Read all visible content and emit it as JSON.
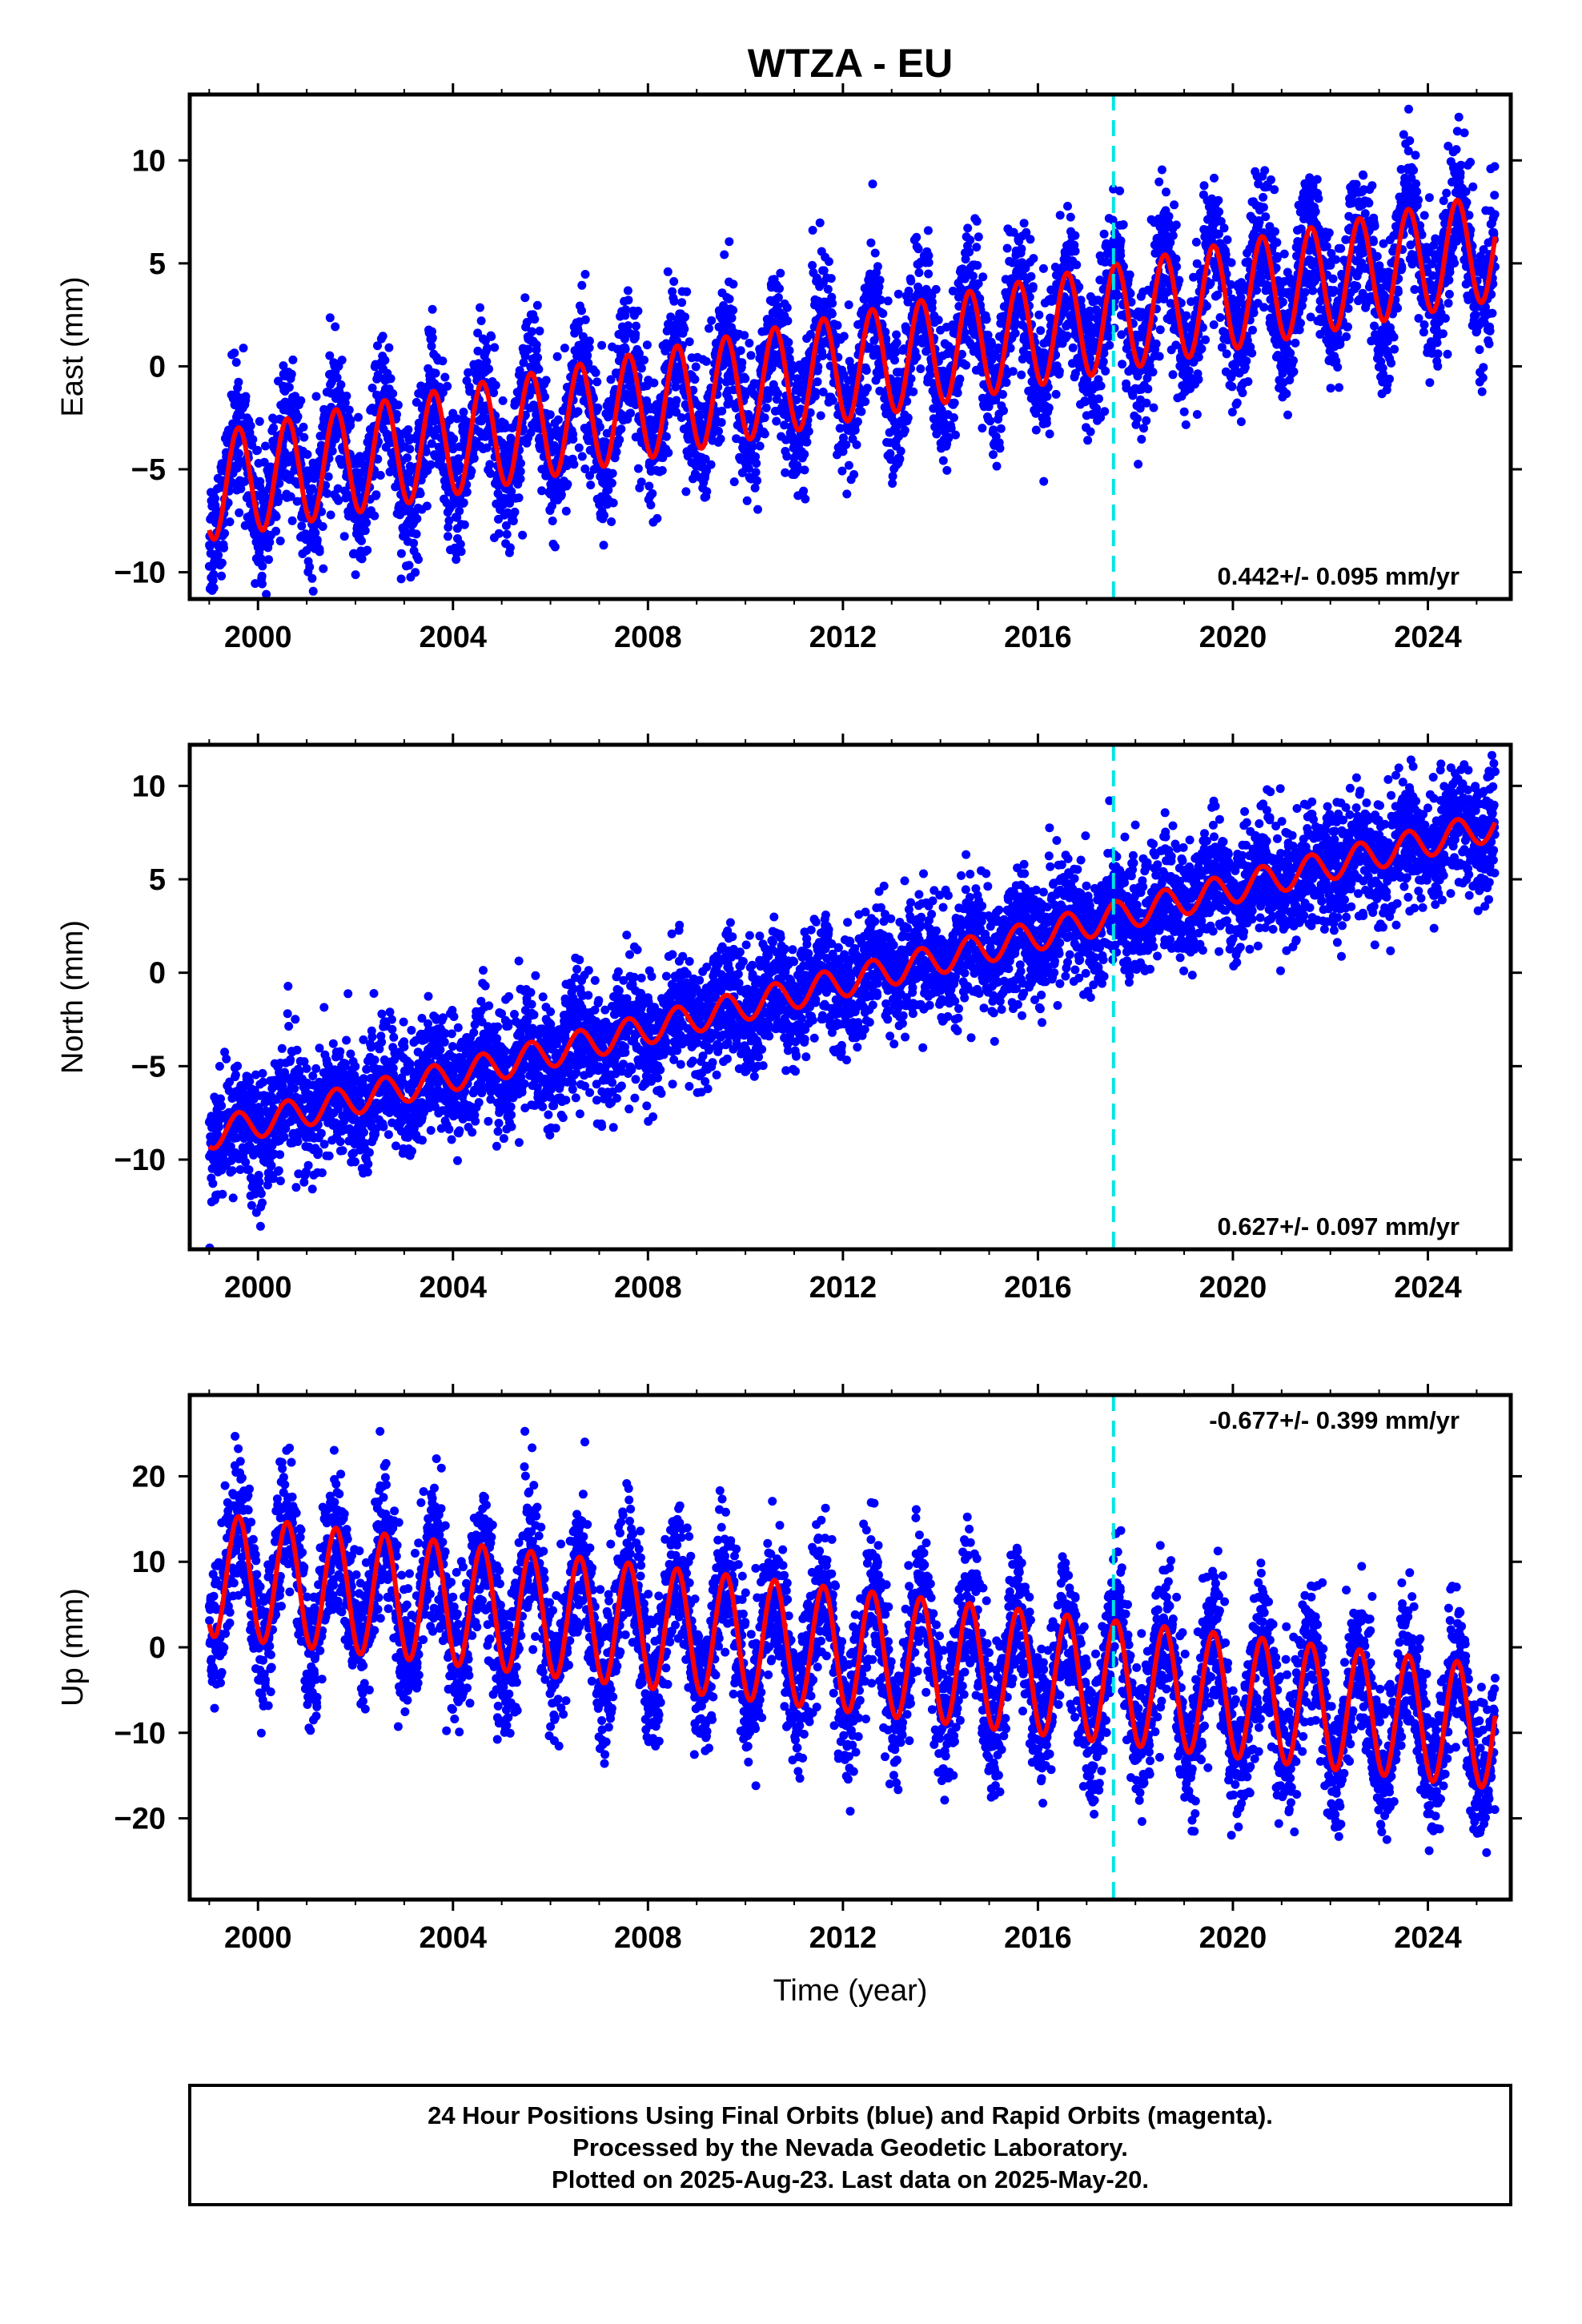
{
  "title": "WTZA - EU",
  "xlabel": "Time (year)",
  "colors": {
    "points": "#0000ff",
    "fit": "#ff0000",
    "marker": "#00e5e5",
    "frame": "#000000"
  },
  "chart_data": [
    {
      "type": "scatter",
      "ylabel": "East (mm)",
      "rate_text": "0.442+/- 0.095 mm/yr",
      "rate_position": "bottom-right",
      "xlim": [
        1998.6,
        2025.7
      ],
      "ylim": [
        -11.3,
        13.2
      ],
      "yticks": [
        -10,
        -5,
        0,
        5,
        10
      ],
      "xticks": [
        2000,
        2004,
        2008,
        2012,
        2016,
        2020,
        2024
      ],
      "marker_line_x": 2017.55,
      "data_start": 1999.0,
      "data_end": 2025.38,
      "fit": {
        "t0": 2012.0,
        "offset": -0.1,
        "slope": 0.442,
        "seasonal_amplitude": 2.6,
        "seasonal_phase_year": 0.35
      },
      "noise_std": 1.7,
      "series": [
        {
          "name": "Final Orbits",
          "role": "daily positions",
          "color": "#0000ff"
        },
        {
          "name": "Fit",
          "role": "trend + seasonal model",
          "color": "#ff0000"
        }
      ]
    },
    {
      "type": "scatter",
      "ylabel": "North (mm)",
      "rate_text": "0.627+/- 0.097 mm/yr",
      "rate_position": "bottom-right",
      "xlim": [
        1998.6,
        2025.7
      ],
      "ylim": [
        -14.8,
        12.2
      ],
      "yticks": [
        -10,
        -5,
        0,
        5,
        10
      ],
      "xticks": [
        2000,
        2004,
        2008,
        2012,
        2016,
        2020,
        2024
      ],
      "marker_line_x": 2017.55,
      "data_start": 1999.0,
      "data_end": 2025.38,
      "fit": {
        "t0": 2012.0,
        "offset": -0.5,
        "slope": 0.627,
        "seasonal_amplitude": 0.8,
        "seasonal_phase_year": 0.35
      },
      "noise_std": 1.6,
      "series": [
        {
          "name": "Final Orbits",
          "role": "daily positions",
          "color": "#0000ff"
        },
        {
          "name": "Fit",
          "role": "trend + seasonal model",
          "color": "#ff0000"
        }
      ]
    },
    {
      "type": "scatter",
      "ylabel": "Up (mm)",
      "rate_text": "-0.677+/- 0.399 mm/yr",
      "rate_position": "top-right",
      "xlim": [
        1998.6,
        2025.7
      ],
      "ylim": [
        -29.5,
        29.5
      ],
      "yticks": [
        -20,
        -10,
        0,
        10,
        20
      ],
      "xticks": [
        2000,
        2004,
        2008,
        2012,
        2016,
        2020,
        2024
      ],
      "marker_line_x": 2017.55,
      "data_start": 1999.0,
      "data_end": 2025.38,
      "fit": {
        "t0": 2012.0,
        "offset": -0.3,
        "slope": -0.677,
        "seasonal_amplitude": 7.2,
        "seasonal_phase_year": 0.35
      },
      "noise_std": 4.2,
      "series": [
        {
          "name": "Final Orbits",
          "role": "daily positions",
          "color": "#0000ff"
        },
        {
          "name": "Fit",
          "role": "trend + seasonal model",
          "color": "#ff0000"
        }
      ]
    }
  ],
  "footer": {
    "line1": "24 Hour Positions Using Final Orbits (blue) and Rapid Orbits (magenta).",
    "line2": "Processed by the Nevada Geodetic Laboratory.",
    "line3": "Plotted on 2025-Aug-23. Last data on 2025-May-20."
  }
}
